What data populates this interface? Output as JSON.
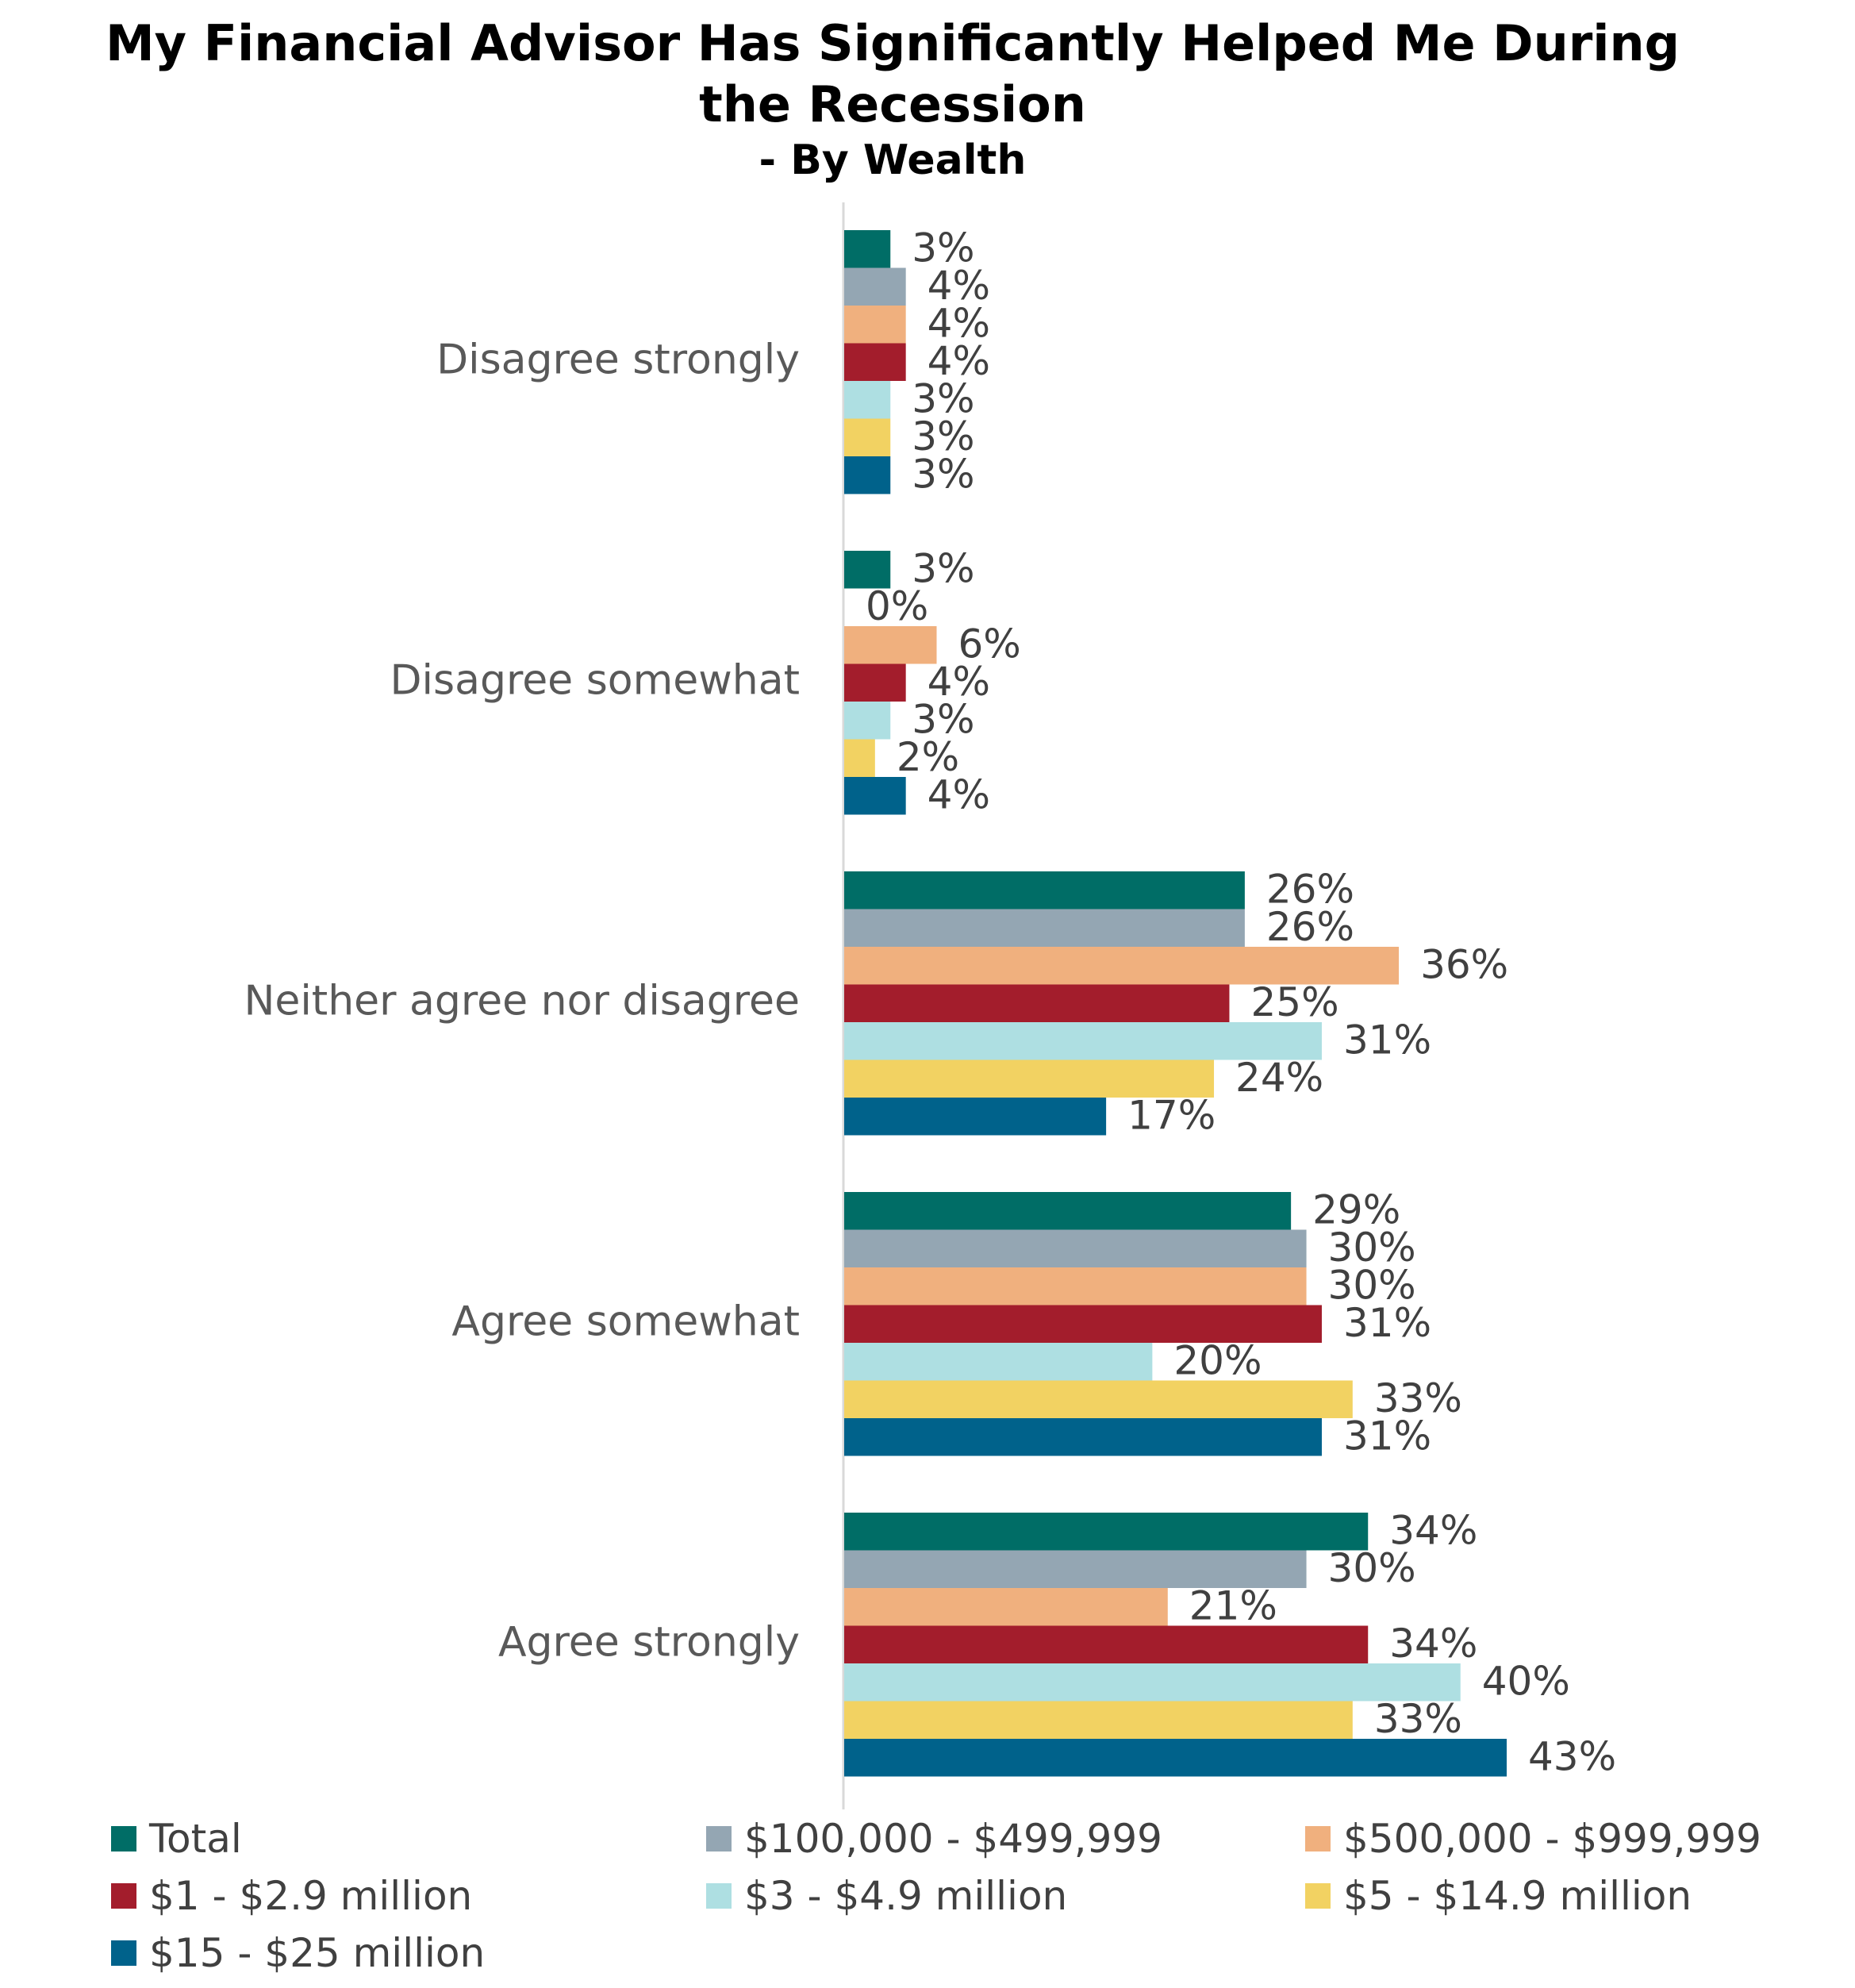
{
  "title": {
    "line1": "My Financial Advisor Has Significantly Helped Me During",
    "line2": "the Recession",
    "subtitle": "- By Wealth"
  },
  "chart_data": {
    "type": "bar",
    "orientation": "horizontal",
    "title": "My Financial Advisor Has Significantly Helped Me During the Recession",
    "subtitle": "- By Wealth",
    "categories": [
      "Disagree strongly",
      "Disagree somewhat",
      "Neither agree nor disagree",
      "Agree somewhat",
      "Agree strongly"
    ],
    "series": [
      {
        "name": "Total",
        "color": "#006d66",
        "values": [
          3,
          3,
          26,
          29,
          34
        ]
      },
      {
        "name": "$100,000 - $499,999",
        "color": "#94a6b3",
        "values": [
          4,
          0,
          26,
          30,
          30
        ]
      },
      {
        "name": "$500,000 - $999,999",
        "color": "#f0b07e",
        "values": [
          4,
          6,
          36,
          30,
          21
        ]
      },
      {
        "name": "$1 - $2.9 million",
        "color": "#a31d2c",
        "values": [
          4,
          4,
          25,
          31,
          34
        ]
      },
      {
        "name": "$3 - $4.9 million",
        "color": "#aedfe2",
        "values": [
          3,
          3,
          31,
          20,
          40
        ]
      },
      {
        "name": "$5 - $14.9 million",
        "color": "#f2d262",
        "values": [
          3,
          2,
          24,
          33,
          33
        ]
      },
      {
        "name": "$15 - $25 million",
        "color": "#00628b",
        "values": [
          3,
          4,
          17,
          31,
          43
        ]
      }
    ],
    "value_suffix": "%",
    "xlim": [
      0,
      45
    ],
    "grid": false,
    "legend_position": "bottom"
  }
}
